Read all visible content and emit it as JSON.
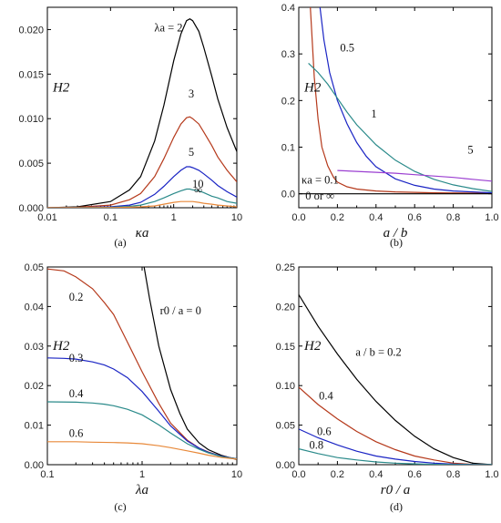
{
  "chart_data": [
    {
      "panel": "a",
      "type": "line",
      "caption": "(a)",
      "xlabel": "κa",
      "ylabel": "H2",
      "xscale": "log",
      "xlim": [
        0.01,
        10
      ],
      "ylim": [
        0,
        0.0225
      ],
      "xticks": [
        "0.01",
        "0.1",
        "1",
        "10"
      ],
      "yticks": [
        "0.000",
        "0.005",
        "0.010",
        "0.015",
        "0.020"
      ],
      "annotations": [
        "λa = 2",
        "3",
        "5",
        "10",
        "∞"
      ],
      "series": [
        {
          "name": "λa = 2",
          "color": "#000000",
          "x": [
            0.01,
            0.03,
            0.1,
            0.2,
            0.3,
            0.5,
            0.7,
            1.0,
            1.3,
            1.6,
            1.8,
            2.0,
            2.5,
            3.0,
            4.0,
            5.0,
            7.0,
            10.0
          ],
          "y": [
            0.0,
            0.0001,
            0.0007,
            0.002,
            0.0035,
            0.0075,
            0.0115,
            0.0165,
            0.0195,
            0.021,
            0.0212,
            0.021,
            0.0198,
            0.018,
            0.0148,
            0.0122,
            0.009,
            0.0063
          ]
        },
        {
          "name": "3",
          "color": "#b5391b",
          "x": [
            0.01,
            0.03,
            0.1,
            0.2,
            0.3,
            0.5,
            0.7,
            1.0,
            1.3,
            1.6,
            1.8,
            2.0,
            2.5,
            3.0,
            4.0,
            5.0,
            7.0,
            10.0
          ],
          "y": [
            0.0,
            5e-05,
            0.0003,
            0.0009,
            0.0016,
            0.0035,
            0.0055,
            0.0079,
            0.0094,
            0.0101,
            0.0102,
            0.01,
            0.0094,
            0.0085,
            0.007,
            0.0057,
            0.0042,
            0.0029
          ]
        },
        {
          "name": "5",
          "color": "#1a24c4",
          "x": [
            0.01,
            0.03,
            0.1,
            0.2,
            0.3,
            0.5,
            0.7,
            1.0,
            1.3,
            1.6,
            1.8,
            2.0,
            2.5,
            3.0,
            4.0,
            5.0,
            7.0,
            10.0
          ],
          "y": [
            0.0,
            2e-05,
            0.0001,
            0.0003,
            0.0006,
            0.0015,
            0.0024,
            0.0035,
            0.0042,
            0.0046,
            0.0046,
            0.0045,
            0.0042,
            0.0038,
            0.0031,
            0.0025,
            0.0018,
            0.0012
          ]
        },
        {
          "name": "10",
          "color": "#2a8a8a",
          "x": [
            0.01,
            0.03,
            0.1,
            0.2,
            0.3,
            0.5,
            0.7,
            1.0,
            1.3,
            1.6,
            1.8,
            2.0,
            2.5,
            3.0,
            4.0,
            5.0,
            7.0,
            10.0
          ],
          "y": [
            0.0,
            1e-05,
            5e-05,
            0.00015,
            0.0003,
            0.0007,
            0.0011,
            0.0016,
            0.0019,
            0.0021,
            0.0021,
            0.002,
            0.0019,
            0.0017,
            0.0013,
            0.0011,
            0.0007,
            0.0005
          ]
        },
        {
          "name": "∞",
          "color": "#e8893a",
          "x": [
            0.01,
            0.03,
            0.1,
            0.2,
            0.3,
            0.5,
            0.7,
            1.0,
            1.3,
            1.6,
            1.8,
            2.0,
            2.5,
            3.0,
            4.0,
            5.0,
            7.0,
            10.0
          ],
          "y": [
            0.0,
            0.0,
            2e-05,
            6e-05,
            0.0001,
            0.0002,
            0.0004,
            0.0006,
            0.0007,
            0.0007,
            0.0007,
            0.0007,
            0.0006,
            0.0005,
            0.0004,
            0.0003,
            0.0002,
            0.0001
          ]
        }
      ]
    },
    {
      "panel": "b",
      "type": "line",
      "caption": "(b)",
      "xlabel": "a / b",
      "ylabel": "H2",
      "xlim": [
        0,
        1.0
      ],
      "ylim": [
        -0.03,
        0.4
      ],
      "xticks": [
        "0.0",
        "0.2",
        "0.4",
        "0.6",
        "0.8",
        "1.0"
      ],
      "yticks": [
        "0.0",
        "0.1",
        "0.2",
        "0.3",
        "0.4"
      ],
      "annotations": [
        "0.5",
        "1",
        "5",
        "κa = 0.1",
        "0 or ∞"
      ],
      "series": [
        {
          "name": "κa = 0.1",
          "color": "#b5391b",
          "x": [
            0.06,
            0.08,
            0.1,
            0.12,
            0.15,
            0.18,
            0.2,
            0.25,
            0.3,
            0.4,
            0.5,
            0.7,
            1.0
          ],
          "y": [
            0.4,
            0.25,
            0.16,
            0.1,
            0.06,
            0.035,
            0.025,
            0.015,
            0.01,
            0.006,
            0.004,
            0.002,
            0.001
          ]
        },
        {
          "name": "0.5",
          "color": "#1a24c4",
          "x": [
            0.11,
            0.13,
            0.16,
            0.2,
            0.25,
            0.3,
            0.35,
            0.4,
            0.5,
            0.6,
            0.7,
            0.8,
            1.0
          ],
          "y": [
            0.4,
            0.33,
            0.26,
            0.2,
            0.15,
            0.11,
            0.08,
            0.058,
            0.032,
            0.018,
            0.01,
            0.006,
            0.002
          ]
        },
        {
          "name": "1",
          "color": "#2a8a8a",
          "x": [
            0.05,
            0.1,
            0.15,
            0.2,
            0.25,
            0.3,
            0.4,
            0.5,
            0.6,
            0.7,
            0.8,
            0.9,
            1.0
          ],
          "y": [
            0.28,
            0.26,
            0.235,
            0.205,
            0.175,
            0.148,
            0.105,
            0.072,
            0.048,
            0.031,
            0.019,
            0.011,
            0.005
          ]
        },
        {
          "name": "5",
          "color": "#9b3fd1",
          "x": [
            0.2,
            0.3,
            0.4,
            0.5,
            0.6,
            0.7,
            0.8,
            0.9,
            1.0
          ],
          "y": [
            0.05,
            0.048,
            0.046,
            0.044,
            0.041,
            0.038,
            0.035,
            0.031,
            0.027
          ]
        },
        {
          "name": "0 or ∞",
          "color": "#000000",
          "x": [
            0.0,
            1.0
          ],
          "y": [
            0.0,
            0.0
          ]
        }
      ]
    },
    {
      "panel": "c",
      "type": "line",
      "caption": "(c)",
      "xlabel": "λa",
      "ylabel": "H2",
      "xscale": "log",
      "xlim": [
        0.1,
        10
      ],
      "ylim": [
        0,
        0.05
      ],
      "xticks": [
        "0.1",
        "1",
        "10"
      ],
      "yticks": [
        "0.00",
        "0.01",
        "0.02",
        "0.03",
        "0.04",
        "0.05"
      ],
      "annotations": [
        "r0 / a = 0",
        "0.2",
        "0.3",
        "0.4",
        "0.6"
      ],
      "series": [
        {
          "name": "r0 / a = 0",
          "color": "#000000",
          "x": [
            1.05,
            1.2,
            1.5,
            2.0,
            2.5,
            3.0,
            4.0,
            5.0,
            7.0,
            10.0
          ],
          "y": [
            0.05,
            0.042,
            0.03,
            0.019,
            0.013,
            0.009,
            0.0055,
            0.0038,
            0.0023,
            0.0013
          ]
        },
        {
          "name": "0.2",
          "color": "#b5391b",
          "x": [
            0.1,
            0.15,
            0.2,
            0.3,
            0.4,
            0.5,
            0.7,
            1.0,
            1.5,
            2.0,
            3.0,
            4.0,
            5.0,
            7.0,
            10.0
          ],
          "y": [
            0.0495,
            0.049,
            0.0475,
            0.0445,
            0.041,
            0.038,
            0.031,
            0.0235,
            0.0155,
            0.0105,
            0.0062,
            0.0042,
            0.0032,
            0.0021,
            0.0015
          ]
        },
        {
          "name": "0.3",
          "color": "#1a24c4",
          "x": [
            0.1,
            0.15,
            0.2,
            0.3,
            0.4,
            0.5,
            0.7,
            1.0,
            1.5,
            2.0,
            3.0,
            4.0,
            5.0,
            7.0,
            10.0
          ],
          "y": [
            0.027,
            0.0269,
            0.0267,
            0.026,
            0.0252,
            0.0242,
            0.022,
            0.0185,
            0.0135,
            0.0098,
            0.006,
            0.0042,
            0.0031,
            0.0021,
            0.0015
          ]
        },
        {
          "name": "0.4",
          "color": "#2a8a8a",
          "x": [
            0.1,
            0.2,
            0.3,
            0.4,
            0.5,
            0.7,
            1.0,
            1.5,
            2.0,
            3.0,
            4.0,
            5.0,
            7.0,
            10.0
          ],
          "y": [
            0.0159,
            0.0158,
            0.0156,
            0.0153,
            0.0149,
            0.014,
            0.0126,
            0.0101,
            0.008,
            0.0053,
            0.0039,
            0.003,
            0.002,
            0.0015
          ]
        },
        {
          "name": "0.6",
          "color": "#e8893a",
          "x": [
            0.1,
            0.2,
            0.3,
            0.5,
            0.7,
            1.0,
            1.5,
            2.0,
            3.0,
            4.0,
            5.0,
            7.0,
            10.0
          ],
          "y": [
            0.0058,
            0.0058,
            0.0057,
            0.0056,
            0.0055,
            0.0053,
            0.0048,
            0.0043,
            0.0035,
            0.0029,
            0.0024,
            0.0018,
            0.0014
          ]
        }
      ]
    },
    {
      "panel": "d",
      "type": "line",
      "caption": "(d)",
      "xlabel": "r0 / a",
      "ylabel": "H2",
      "xlim": [
        0,
        1.0
      ],
      "ylim": [
        0,
        0.25
      ],
      "xticks": [
        "0.0",
        "0.2",
        "0.4",
        "0.6",
        "0.8",
        "1.0"
      ],
      "yticks": [
        "0.00",
        "0.05",
        "0.10",
        "0.15",
        "0.20",
        "0.25"
      ],
      "annotations": [
        "a / b = 0.2",
        "0.4",
        "0.6",
        "0.8"
      ],
      "series": [
        {
          "name": "a / b = 0.2",
          "color": "#000000",
          "x": [
            0.0,
            0.1,
            0.2,
            0.3,
            0.4,
            0.5,
            0.6,
            0.7,
            0.8,
            0.9,
            1.0
          ],
          "y": [
            0.215,
            0.175,
            0.14,
            0.108,
            0.08,
            0.056,
            0.036,
            0.02,
            0.009,
            0.002,
            0.0
          ]
        },
        {
          "name": "0.4",
          "color": "#b5391b",
          "x": [
            0.0,
            0.1,
            0.2,
            0.3,
            0.4,
            0.5,
            0.6,
            0.7,
            0.8,
            0.9,
            1.0
          ],
          "y": [
            0.098,
            0.076,
            0.058,
            0.042,
            0.029,
            0.019,
            0.011,
            0.006,
            0.002,
            0.0005,
            0.0
          ]
        },
        {
          "name": "0.6",
          "color": "#1a24c4",
          "x": [
            0.0,
            0.1,
            0.2,
            0.3,
            0.4,
            0.5,
            0.6,
            0.7,
            0.8,
            0.9,
            1.0
          ],
          "y": [
            0.045,
            0.034,
            0.025,
            0.017,
            0.011,
            0.007,
            0.004,
            0.002,
            0.0008,
            0.0002,
            0.0
          ]
        },
        {
          "name": "0.8",
          "color": "#2a8a8a",
          "x": [
            0.0,
            0.1,
            0.2,
            0.3,
            0.4,
            0.5,
            0.6,
            0.7,
            0.8,
            0.9,
            1.0
          ],
          "y": [
            0.02,
            0.014,
            0.009,
            0.006,
            0.0035,
            0.002,
            0.001,
            0.0005,
            0.0002,
            0.0,
            0.0
          ]
        }
      ]
    }
  ]
}
